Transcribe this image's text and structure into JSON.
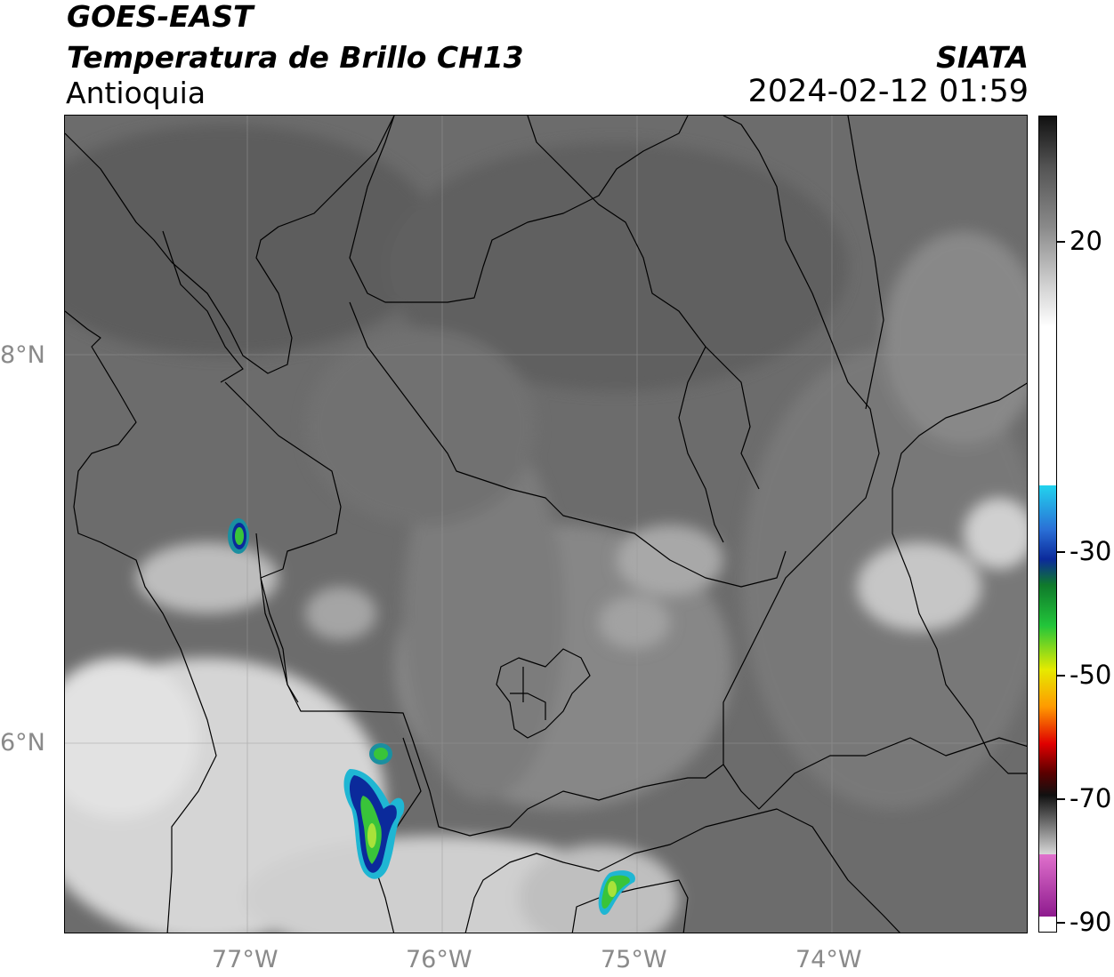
{
  "header": {
    "satellite": "GOES-EAST",
    "product": "Temperatura de Brillo CH13",
    "region": "Antioquia",
    "agency": "SIATA",
    "datetime": "2024-02-12 01:59"
  },
  "axes": {
    "lat_labels": [
      "8°N",
      "6°N"
    ],
    "lon_labels": [
      "77°W",
      "76°W",
      "75°W",
      "74°W"
    ]
  },
  "colorbar": {
    "tick_labels": [
      "20",
      "-30",
      "-50",
      "-70",
      "-90"
    ],
    "units": "",
    "colors": {
      "warm_gray_top": "#111111",
      "gray_mid": "#8a8a8a",
      "white": "#ffffff",
      "cyan": "#22d3ee",
      "blue": "#0b2a9b",
      "green": "#22c53a",
      "yellow": "#e6ea00",
      "orange": "#ff9a00",
      "red": "#e00000",
      "dark": "#111111",
      "magenta": "#d65bc0",
      "purple": "#8e1b8e"
    }
  },
  "map": {
    "background_color": "#6a6a6a",
    "cloud_color": "#dcdcdc",
    "cold_cloud_colors": [
      "#0b2a9b",
      "#1b8fa0",
      "#39c43a",
      "#a8e23a"
    ]
  }
}
